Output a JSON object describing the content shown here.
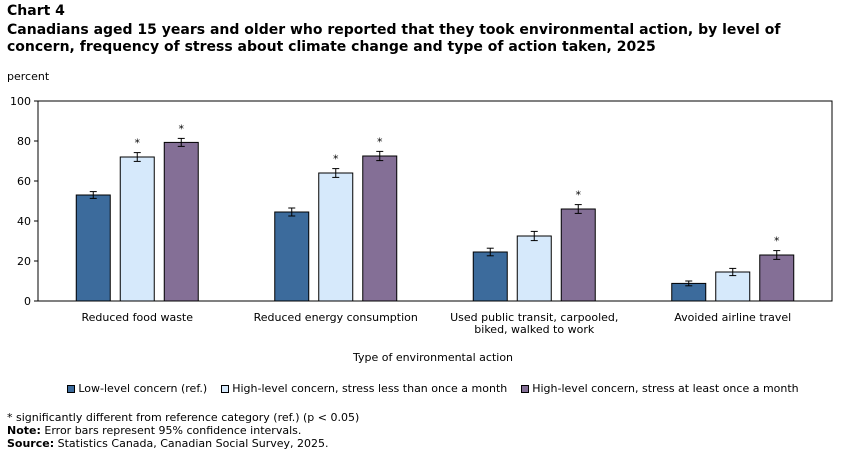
{
  "chart_label": "Chart 4",
  "chart_title": "Canadians aged 15 years and older who reported that they took environmental action, by level of concern, frequency of stress about climate change and type of action taken, 2025",
  "y_unit": "percent",
  "x_axis_title": "Type of environmental action",
  "legend": [
    {
      "name": "Low-level concern (ref.)",
      "color": "#3c6b9c"
    },
    {
      "name": "High-level concern, stress less than once a month",
      "color": "#d6e9fb"
    },
    {
      "name": "High-level concern, stress at least once a month",
      "color": "#846f96"
    }
  ],
  "notes": {
    "significance": "* significantly different from reference category (ref.) (p < 0.05)",
    "note_label": "Note:",
    "note_text": " Error bars represent 95% confidence intervals.",
    "source_label": "Source:",
    "source_text": " Statistics Canada, Canadian Social Survey, 2025."
  },
  "chart_data": {
    "type": "bar",
    "title": "Canadians aged 15 years and older who reported that they took environmental action, by level of concern, frequency of stress about climate change and type of action taken, 2025",
    "xlabel": "Type of environmental action",
    "ylabel": "percent",
    "ylim": [
      0,
      100
    ],
    "yticks": [
      0,
      20,
      40,
      60,
      80,
      100
    ],
    "categories": [
      [
        "Reduced food waste"
      ],
      [
        "Reduced energy consumption"
      ],
      [
        "Used public transit, carpooled,",
        "biked, walked to work"
      ],
      [
        "Avoided airline travel"
      ]
    ],
    "series": [
      {
        "name": "Low-level concern (ref.)",
        "color": "#3c6b9c",
        "values": [
          53,
          44.5,
          24.5,
          8.8
        ],
        "ci_low": [
          51.3,
          42.5,
          22.6,
          7.6
        ],
        "ci_high": [
          54.7,
          46.5,
          26.4,
          10.0
        ],
        "significant": [
          false,
          false,
          false,
          false
        ]
      },
      {
        "name": "High-level concern, stress less than once a month",
        "color": "#d6e9fb",
        "values": [
          72,
          64,
          32.5,
          14.5
        ],
        "ci_low": [
          69.8,
          61.8,
          30.2,
          12.7
        ],
        "ci_high": [
          74.2,
          66.2,
          34.8,
          16.3
        ],
        "significant": [
          true,
          true,
          false,
          false
        ]
      },
      {
        "name": "High-level concern, stress at least once a month",
        "color": "#846f96",
        "values": [
          79.3,
          72.5,
          46,
          23
        ],
        "ci_low": [
          77.3,
          70.2,
          43.8,
          20.8
        ],
        "ci_high": [
          81.3,
          74.8,
          48.2,
          25.2
        ],
        "significant": [
          true,
          true,
          true,
          true
        ]
      }
    ],
    "significance_marker": "*",
    "grid": false,
    "legend_position": "bottom"
  }
}
